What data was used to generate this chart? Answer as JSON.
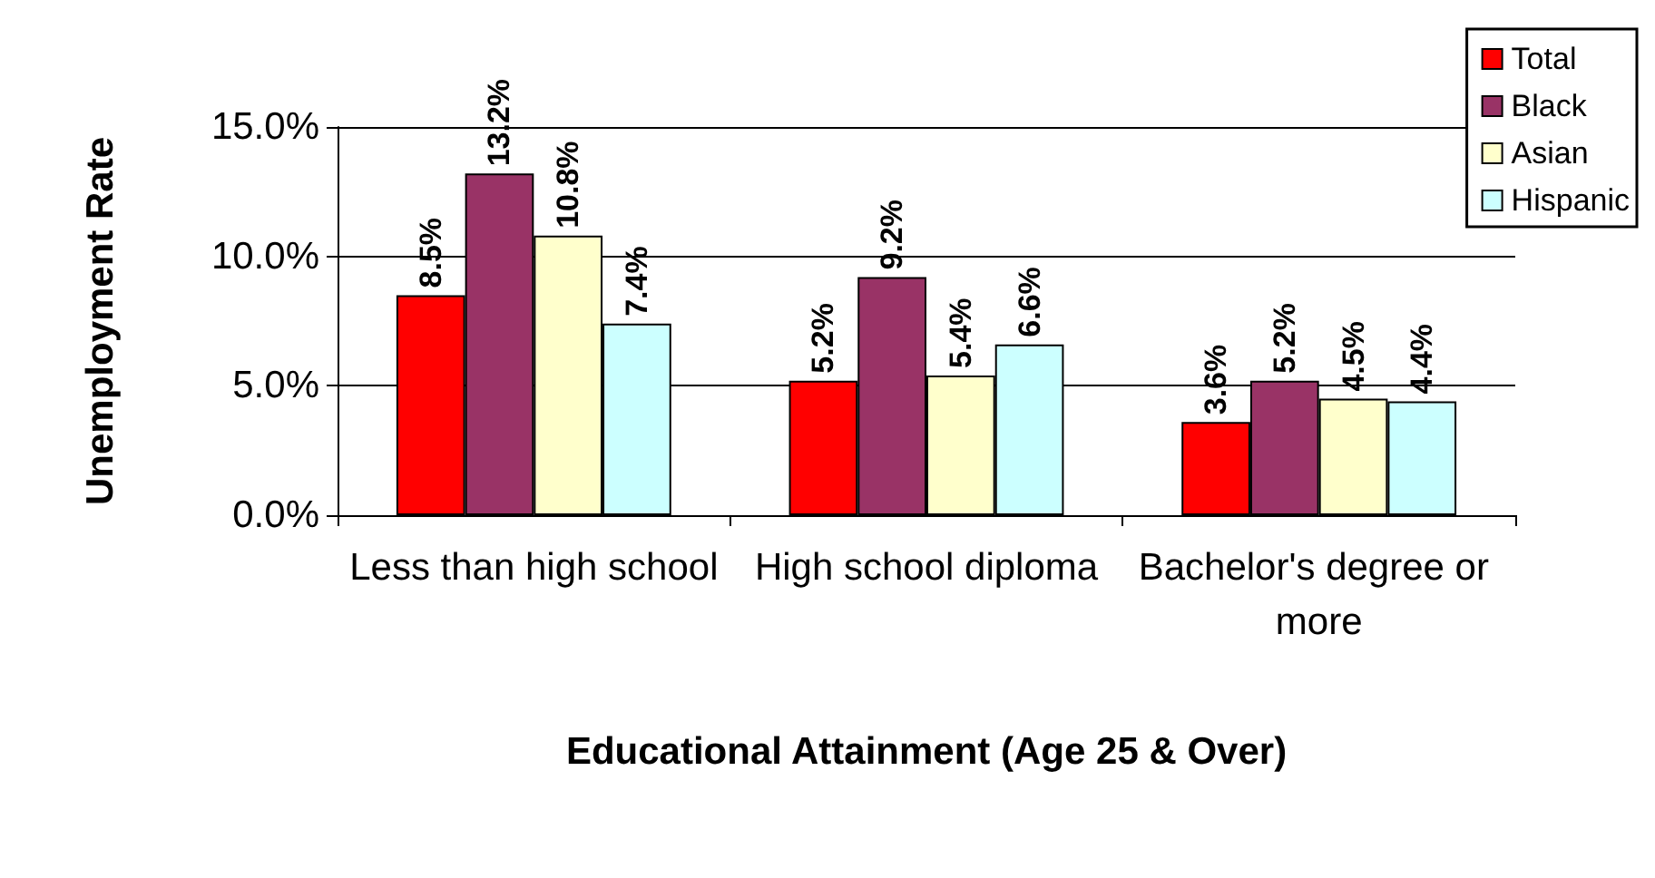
{
  "chart_data": {
    "type": "bar",
    "xlabel": "Educational Attainment (Age 25 & Over)",
    "ylabel": "Unemployment Rate",
    "categories": [
      "Less than high school",
      "High school diploma",
      "Bachelor's degree or more"
    ],
    "series": [
      {
        "name": "Total",
        "color": "#ff0000",
        "values": [
          8.5,
          5.2,
          3.6
        ],
        "value_labels": [
          "8.5%",
          "5.2%",
          "3.6%"
        ]
      },
      {
        "name": "Black",
        "color": "#993366",
        "values": [
          13.2,
          9.2,
          5.2
        ],
        "value_labels": [
          "13.2%",
          "9.2%",
          "5.2%"
        ]
      },
      {
        "name": "Asian",
        "color": "#ffffcc",
        "values": [
          10.8,
          5.4,
          4.5
        ],
        "value_labels": [
          "10.8%",
          "5.4%",
          "4.5%"
        ]
      },
      {
        "name": "Hispanic",
        "color": "#ccffff",
        "values": [
          7.4,
          6.6,
          4.4
        ],
        "value_labels": [
          "7.4%",
          "6.6%",
          "4.4%"
        ]
      }
    ],
    "ylim": [
      0,
      15
    ],
    "yticks": [
      {
        "value": 0,
        "label": "0.0%"
      },
      {
        "value": 5,
        "label": "5.0%"
      },
      {
        "value": 10,
        "label": "10.0%"
      },
      {
        "value": 15,
        "label": "15.0%"
      }
    ],
    "grid": "y",
    "legend": "top right"
  }
}
